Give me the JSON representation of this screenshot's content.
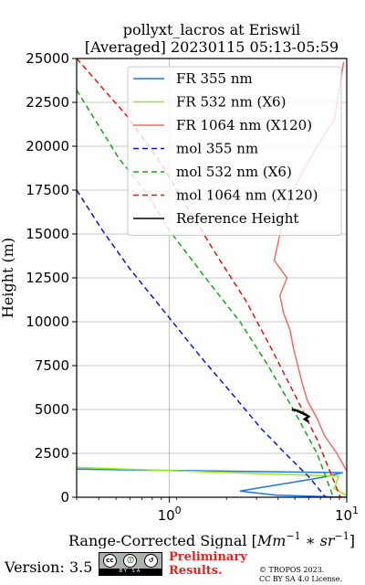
{
  "chart_data": {
    "type": "line",
    "title_line1": "pollyxt_lacros at Eriswil",
    "title_line2": "[Averaged] 20230115 05:13-05:59",
    "xlabel_main": "Range-Corrected Signal [",
    "xlabel_math": "Mm",
    "xlabel_exp1": "−1",
    "xlabel_mid": " ∗ sr",
    "xlabel_exp2": "−1",
    "xlabel_close": "]",
    "ylabel": "Height (m)",
    "xscale": "log",
    "xlim": [
      0.3,
      10
    ],
    "ylim": [
      0,
      25000
    ],
    "grid": true,
    "legend_position": "upper-right",
    "x_ticks": [
      {
        "value": 1,
        "base": "10",
        "exp": "0"
      },
      {
        "value": 10,
        "base": "10",
        "exp": "1"
      }
    ],
    "y_ticks": [
      0,
      2500,
      5000,
      7500,
      10000,
      12500,
      15000,
      17500,
      20000,
      22500,
      25000
    ],
    "series": [
      {
        "name": "FR 355 nm",
        "color": "#1f77e4",
        "dash": "solid",
        "x": [
          10,
          4.0,
          2.5,
          4.0,
          7,
          9.5,
          0.3
        ],
        "y": [
          0,
          120,
          350,
          700,
          1100,
          1400,
          1600
        ]
      },
      {
        "name": "FR 532 nm (X6)",
        "color": "#9ae82a",
        "dash": "solid",
        "x": [
          10,
          8.5,
          9.0,
          0.3
        ],
        "y": [
          100,
          500,
          1200,
          1700
        ]
      },
      {
        "name": "FR 1064 nm (X120)",
        "color": "#f26b6b",
        "dash": "solid",
        "x": [
          10,
          8.8,
          7.5,
          6.8,
          6.0,
          5.6,
          5.3,
          5.0,
          4.8,
          4.4,
          4.2,
          4.6,
          3.9,
          4.1,
          4.3,
          4.6,
          5.0,
          5.6,
          6.4,
          7.3,
          8.5,
          9.6
        ],
        "y": [
          1500,
          2500,
          3500,
          4500,
          5500,
          6500,
          7500,
          8500,
          9500,
          10500,
          11500,
          12500,
          13500,
          14500,
          15500,
          16500,
          17500,
          18500,
          19500,
          20500,
          21500,
          24800
        ]
      },
      {
        "name": "mol 355 nm",
        "color": "#0a15d8",
        "dash": "dashed",
        "x": [
          0.3,
          0.42,
          0.6,
          0.95,
          1.5,
          2.3,
          3.3,
          4.6,
          6.2,
          7.6
        ],
        "y": [
          17500,
          15200,
          13000,
          10500,
          8000,
          5800,
          3900,
          2400,
          1100,
          0
        ]
      },
      {
        "name": "mol 532 nm (X6)",
        "color": "#1ca31c",
        "dash": "dashed",
        "x": [
          0.3,
          0.52,
          0.75,
          1.0,
          1.6,
          2.5,
          3.6,
          5.0,
          6.8,
          8.4
        ],
        "y": [
          23200,
          19300,
          17300,
          15200,
          12500,
          10000,
          7500,
          5000,
          2500,
          0
        ]
      },
      {
        "name": "mol 1064 nm (X120)",
        "color": "#e01414",
        "dash": "dashed",
        "x": [
          0.3,
          0.58,
          0.9,
          1.3,
          1.9,
          2.7,
          3.7,
          5.0,
          6.8,
          9.2
        ],
        "y": [
          25000,
          21700,
          19000,
          16300,
          13600,
          11200,
          8600,
          6000,
          3300,
          0
        ]
      },
      {
        "name": "Reference Height",
        "color": "#000000",
        "dash": "solid",
        "x": [
          4.9,
          5.2,
          5.6,
          5.9,
          6.1,
          5.8,
          6.1
        ],
        "y": [
          5000,
          4950,
          4800,
          4700,
          4600,
          4450,
          4300
        ]
      }
    ]
  },
  "footer": {
    "version": "Version: 3.5",
    "cc_label": "BY SA",
    "preliminary_line1": "Preliminary",
    "preliminary_line2": "Results.",
    "copyright_line1": "© TROPOS 2023.",
    "copyright_line2": "CC BY SA 4.0 License."
  }
}
